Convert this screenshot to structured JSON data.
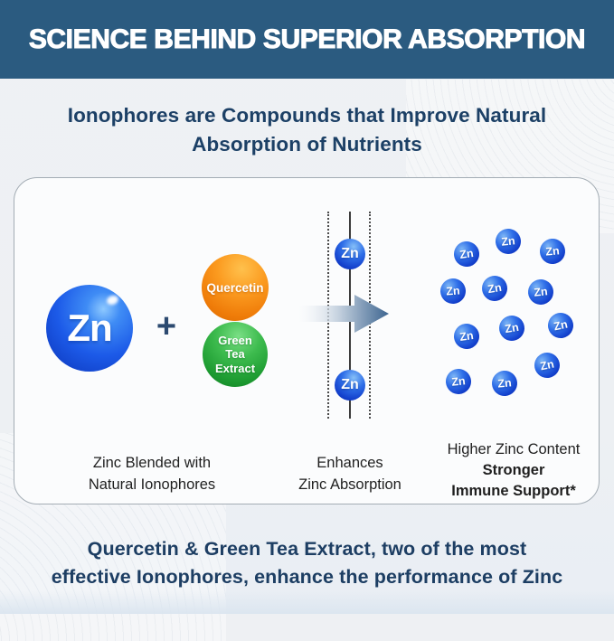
{
  "banner": {
    "title": "SCIENCE BEHIND SUPERIOR ABSORPTION"
  },
  "subtitle": {
    "lines": [
      "Ionophores are Compounds that Improve Natural",
      "Absorption of Nutrients"
    ]
  },
  "diagram": {
    "zinc": {
      "symbol": "Zn"
    },
    "plus_sign": "+",
    "quercetin": {
      "label": "Quercetin"
    },
    "green_tea": {
      "lines": [
        "Green",
        "Tea",
        "Extract"
      ]
    },
    "captions": {
      "left": [
        "Zinc Blended with",
        "Natural Ionophores"
      ],
      "middle": [
        "Enhances",
        "Zinc Absorption"
      ],
      "right_normal": "Higher Zinc Content",
      "right_bold": [
        "Stronger",
        "Immune Support*"
      ]
    },
    "right_cluster_count": 12
  },
  "footer": {
    "lines": [
      "Quercetin & Green Tea Extract, two of the most",
      "effective Ionophores, enhance the performance of Zinc"
    ]
  },
  "colors": {
    "banner_bg": "#2b5b80",
    "heading_text": "#1c4066",
    "footer_text": "#1d3e63",
    "caption_text": "#1f1f1f",
    "zinc_blue": "#1c5ae8",
    "quercetin_orange": "#f58716",
    "green_tea_green": "#23a33a",
    "arrow_steel_blue": "#3d6590"
  }
}
